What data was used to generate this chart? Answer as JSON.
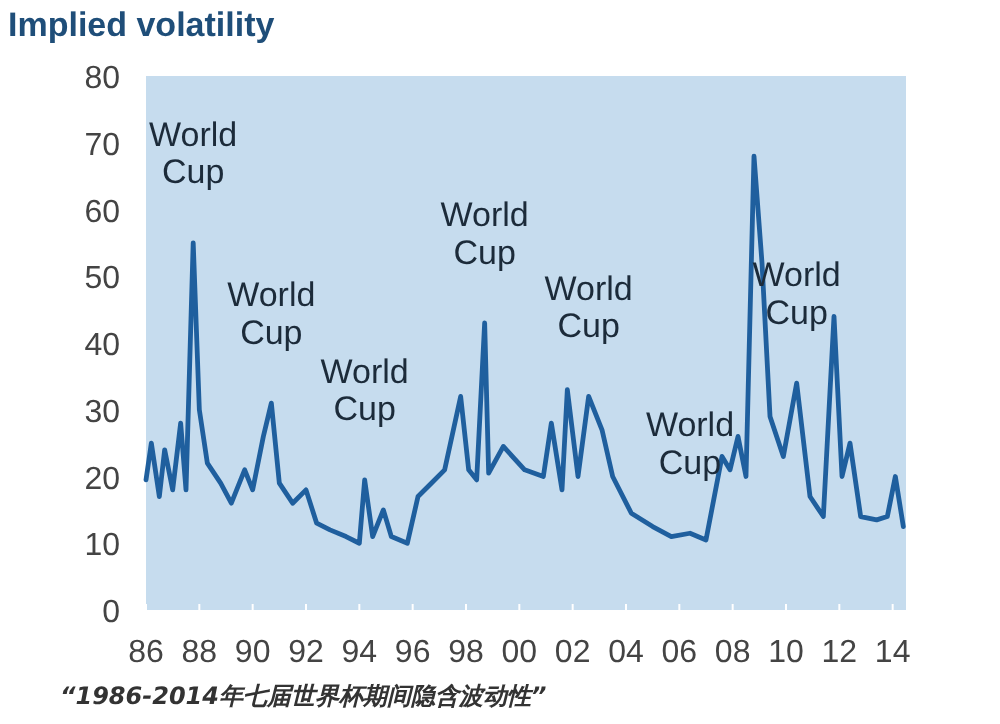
{
  "chart_data": {
    "type": "line",
    "title": "Implied volatility",
    "x": [
      1986.0,
      1986.2,
      1986.5,
      1986.7,
      1987.0,
      1987.3,
      1987.5,
      1987.77,
      1988.0,
      1988.3,
      1988.8,
      1989.2,
      1989.7,
      1990.0,
      1990.4,
      1990.7,
      1991.0,
      1991.5,
      1992.0,
      1992.4,
      1992.9,
      1993.5,
      1994.0,
      1994.2,
      1994.5,
      1994.9,
      1995.2,
      1995.8,
      1996.2,
      1996.7,
      1997.2,
      1997.8,
      1998.1,
      1998.4,
      1998.7,
      1998.85,
      1999.4,
      2000.2,
      2000.9,
      2001.2,
      2001.6,
      2001.8,
      2002.2,
      2002.6,
      2003.1,
      2003.5,
      2004.2,
      2005.0,
      2005.7,
      2006.4,
      2007.0,
      2007.6,
      2007.9,
      2008.2,
      2008.5,
      2008.8,
      2009.1,
      2009.4,
      2009.9,
      2010.4,
      2010.9,
      2011.4,
      2011.8,
      2012.1,
      2012.4,
      2012.8,
      2013.4,
      2013.8,
      2014.1,
      2014.4
    ],
    "values": [
      19.5,
      25,
      17,
      24,
      18,
      28,
      18,
      55,
      30,
      22,
      19,
      16,
      21,
      18,
      26,
      31,
      19,
      16,
      18,
      13,
      12,
      11,
      10,
      19.5,
      11,
      15,
      11,
      10,
      17,
      19,
      21,
      32,
      21,
      19.5,
      43,
      20.5,
      24.5,
      21,
      20,
      28,
      18,
      33,
      20,
      32,
      27,
      20,
      14.5,
      12.5,
      11,
      11.5,
      10.5,
      23,
      21,
      26,
      20,
      68,
      52,
      29,
      23,
      34,
      17,
      14,
      44,
      20,
      25,
      14,
      13.5,
      14,
      20,
      12.5
    ],
    "color": "#1f5f9e",
    "xlim": [
      1986,
      2014.5
    ],
    "xticks": [
      {
        "value": 1986,
        "label": "86"
      },
      {
        "value": 1988,
        "label": "88"
      },
      {
        "value": 1990,
        "label": "90"
      },
      {
        "value": 1992,
        "label": "92"
      },
      {
        "value": 1994,
        "label": "94"
      },
      {
        "value": 1996,
        "label": "96"
      },
      {
        "value": 1998,
        "label": "98"
      },
      {
        "value": 2000,
        "label": "00"
      },
      {
        "value": 2002,
        "label": "02"
      },
      {
        "value": 2004,
        "label": "04"
      },
      {
        "value": 2006,
        "label": "06"
      },
      {
        "value": 2008,
        "label": "08"
      },
      {
        "value": 2010,
        "label": "10"
      },
      {
        "value": 2012,
        "label": "12"
      },
      {
        "value": 2014,
        "label": "14"
      }
    ],
    "ylim": [
      0,
      80
    ],
    "yticks": [
      0,
      10,
      20,
      30,
      40,
      50,
      60,
      70,
      80
    ],
    "grid": false,
    "legend": false,
    "marker": "none",
    "line_style": "solid",
    "annotations": [
      {
        "text": "World Cup",
        "x": 1987.77,
        "y": 55
      },
      {
        "text": "World Cup",
        "x": 1990.7,
        "y": 31
      },
      {
        "text": "World Cup",
        "x": 1994.2,
        "y": 19.5
      },
      {
        "text": "World Cup",
        "x": 1998.7,
        "y": 43
      },
      {
        "text": "World Cup",
        "x": 2002.6,
        "y": 32
      },
      {
        "text": "World Cup",
        "x": 2006.4,
        "y": 11.5
      },
      {
        "text": "World Cup",
        "x": 2010.4,
        "y": 34
      },
      "“1986-2014年七届世界杯期间隐含波动性”"
    ]
  }
}
